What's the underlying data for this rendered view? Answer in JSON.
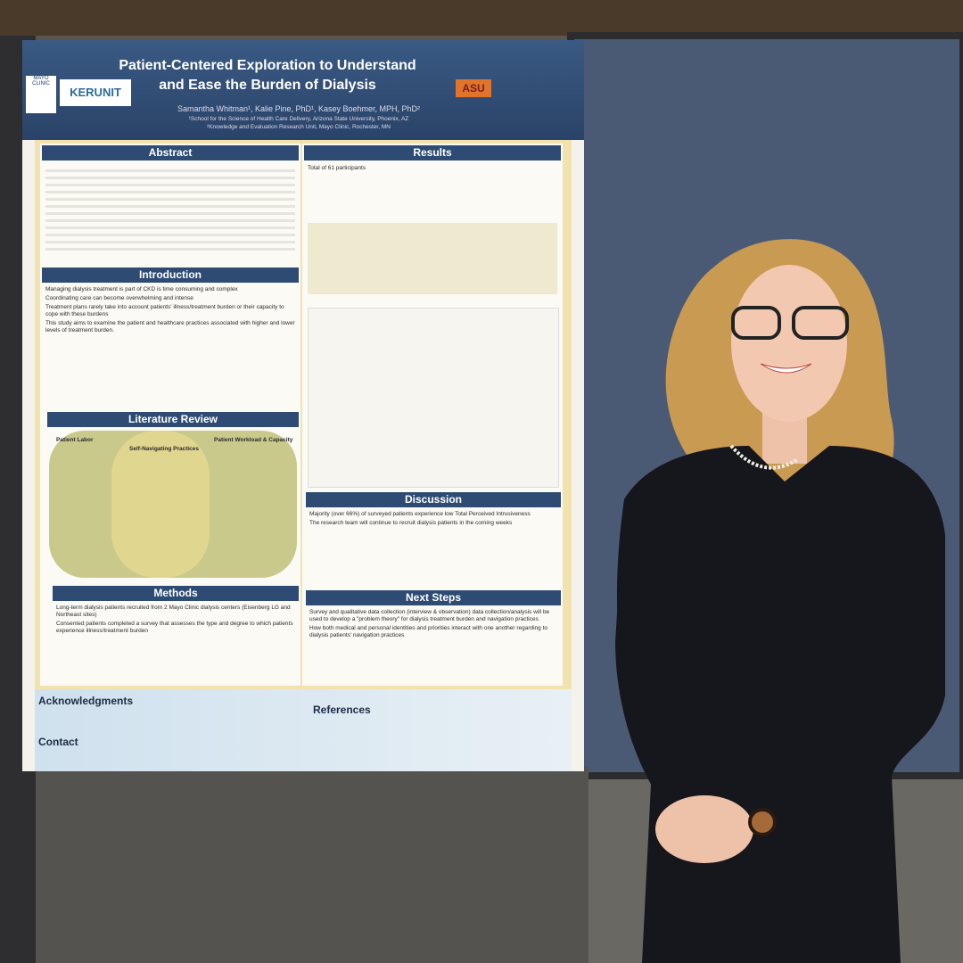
{
  "poster": {
    "title_lines": [
      "Patient-Centered Exploration to Understand",
      "and Ease the Burden of Dialysis"
    ],
    "logos": [
      "MAYO CLINIC",
      "KERUNIT",
      "ASU"
    ],
    "authors": "Samantha Whitman¹, Kalie Pine, PhD¹, Kasey Boehmer, MPH, PhD²",
    "affiliations": [
      "¹School for the Science of Health Care Delivery, Arizona State University, Phoenix, AZ",
      "²Knowledge and Evaluation Research Unit, Mayo Clinic, Rochester, MN"
    ],
    "abstract": {
      "heading": "Abstract"
    },
    "introduction": {
      "heading": "Introduction",
      "items": [
        "Managing dialysis treatment is part of CKD is time consuming and complex",
        "Coordinating care can become overwhelming and intense",
        "Treatment plans rarely take into account patients' illness/treatment burden or their capacity to cope with these burdens",
        "This study aims to examine the patient and healthcare practices associated with higher and lower levels of treatment burden."
      ]
    },
    "literature_review": {
      "heading": "Literature Review",
      "columns": [
        "Patient Labor",
        "Self-Navigating Practices",
        "Patient Workload & Capacity"
      ]
    },
    "methods": {
      "heading": "Methods",
      "items": [
        "Long-term dialysis patients recruited from 2 Mayo Clinic dialysis centers (Eisenberg LG and Northeast sites)",
        "Consented patients completed a survey that assesses the type and degree to which patients experience illness/treatment burden"
      ]
    },
    "results": {
      "heading": "Results",
      "items": [
        "Total of 61 participants"
      ]
    },
    "discussion": {
      "heading": "Discussion",
      "items": [
        "Majority (over 66%) of surveyed patients experience low Total Perceived Intrusiveness",
        "The research team will continue to recruit dialysis patients in the coming weeks"
      ]
    },
    "next_steps": {
      "heading": "Next Steps",
      "items": [
        "Survey and qualitative data collection (interview & observation) data collection/analysis will be used to develop a \"problem theory\" for dialysis treatment burden and navigation practices",
        "How both medical and personal identities and priorities interact with one another regarding to dialysis patients' navigation practices"
      ]
    },
    "acknowledgments": {
      "heading": "Acknowledgments"
    },
    "contact": {
      "heading": "Contact"
    },
    "references": {
      "heading": "References"
    }
  }
}
